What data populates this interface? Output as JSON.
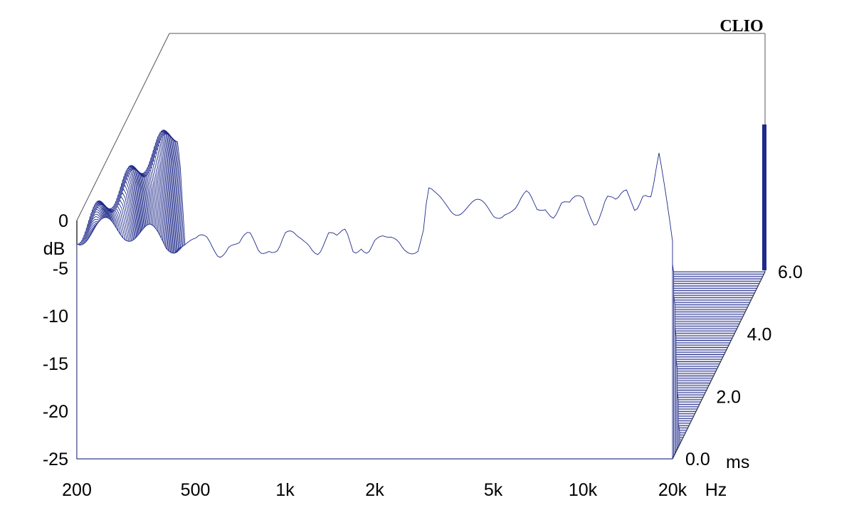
{
  "app": {
    "brand_label": "CLIO"
  },
  "chart_data": {
    "type": "waterfall-3d",
    "title": "",
    "xlabel": "Hz",
    "ylabel": "dB",
    "zlabel": "ms",
    "x_scale": "log",
    "x_ticks": [
      200,
      500,
      1000,
      2000,
      5000,
      10000,
      20000
    ],
    "x_tick_labels": [
      "200",
      "500",
      "1k",
      "2k",
      "5k",
      "10k",
      "20k"
    ],
    "y_ticks": [
      0,
      -5,
      -10,
      -15,
      -20,
      -25
    ],
    "y_tick_labels": [
      "0",
      "-5",
      "-10",
      "-15",
      "-20",
      "-25"
    ],
    "z_ticks": [
      0.0,
      2.0,
      4.0,
      6.0
    ],
    "z_tick_labels": [
      "0.0",
      "2.0",
      "4.0",
      "6.0"
    ],
    "xlim": [
      200,
      20000
    ],
    "ylim": [
      -25,
      0
    ],
    "zlim": [
      0,
      6
    ],
    "slice_count": 80,
    "line_color": "#1f2a8a",
    "floor_color": "#1f2a8a",
    "grid": false,
    "front_response": {
      "x": [
        200,
        230,
        260,
        300,
        350,
        400,
        450,
        500,
        550,
        600,
        650,
        700,
        760,
        820,
        880,
        950,
        1000,
        1100,
        1200,
        1300,
        1400,
        1500,
        1600,
        1700,
        1800,
        1900,
        2000,
        2200,
        2400,
        2600,
        2800,
        2950,
        3000,
        3200,
        3500,
        4000,
        4500,
        5000,
        5500,
        6000,
        6500,
        7000,
        7500,
        8000,
        8500,
        9000,
        10000,
        11000,
        12000,
        13000,
        14000,
        15000,
        16000,
        17000,
        18000,
        19000,
        20000
      ],
      "y": [
        -1.5,
        -1.0,
        -0.8,
        -1.0,
        -1.5,
        -2.5,
        -2.0,
        -3.0,
        -2.2,
        -2.8,
        -2.0,
        -3.2,
        -2.2,
        -3.0,
        -2.0,
        -2.8,
        -2.0,
        -2.6,
        -1.8,
        -2.5,
        -1.5,
        -2.8,
        -1.6,
        -3.0,
        -1.8,
        -2.6,
        -2.2,
        -3.0,
        -2.0,
        -2.2,
        -2.8,
        -1.0,
        2.5,
        1.8,
        2.0,
        1.5,
        1.0,
        0.8,
        1.8,
        1.0,
        2.0,
        1.0,
        2.2,
        1.2,
        1.8,
        0.8,
        2.2,
        0.5,
        2.8,
        1.0,
        2.5,
        1.5,
        4.0,
        3.0,
        6.5,
        1.5,
        -3.0
      ]
    }
  }
}
